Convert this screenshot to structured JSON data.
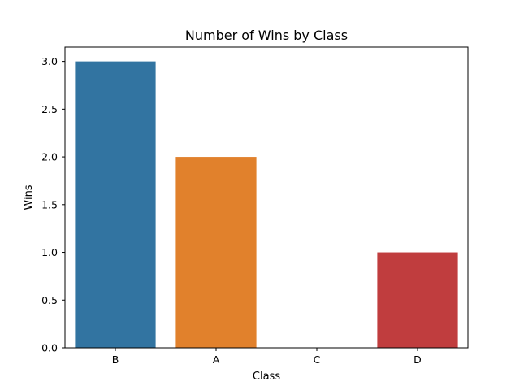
{
  "chart_data": {
    "type": "bar",
    "title": "Number of Wins by Class",
    "xlabel": "Class",
    "ylabel": "Wins",
    "categories": [
      "B",
      "A",
      "C",
      "D"
    ],
    "values": [
      3,
      2,
      0,
      1
    ],
    "colors": [
      "#3274a1",
      "#e1812c",
      "#3a923a",
      "#c03d3e"
    ],
    "ylim": [
      0,
      3.15
    ],
    "yticks": [
      0.0,
      0.5,
      1.0,
      1.5,
      2.0,
      2.5,
      3.0
    ],
    "ytick_labels": [
      "0.0",
      "0.5",
      "1.0",
      "1.5",
      "2.0",
      "2.5",
      "3.0"
    ],
    "grid": false,
    "legend": "none"
  }
}
